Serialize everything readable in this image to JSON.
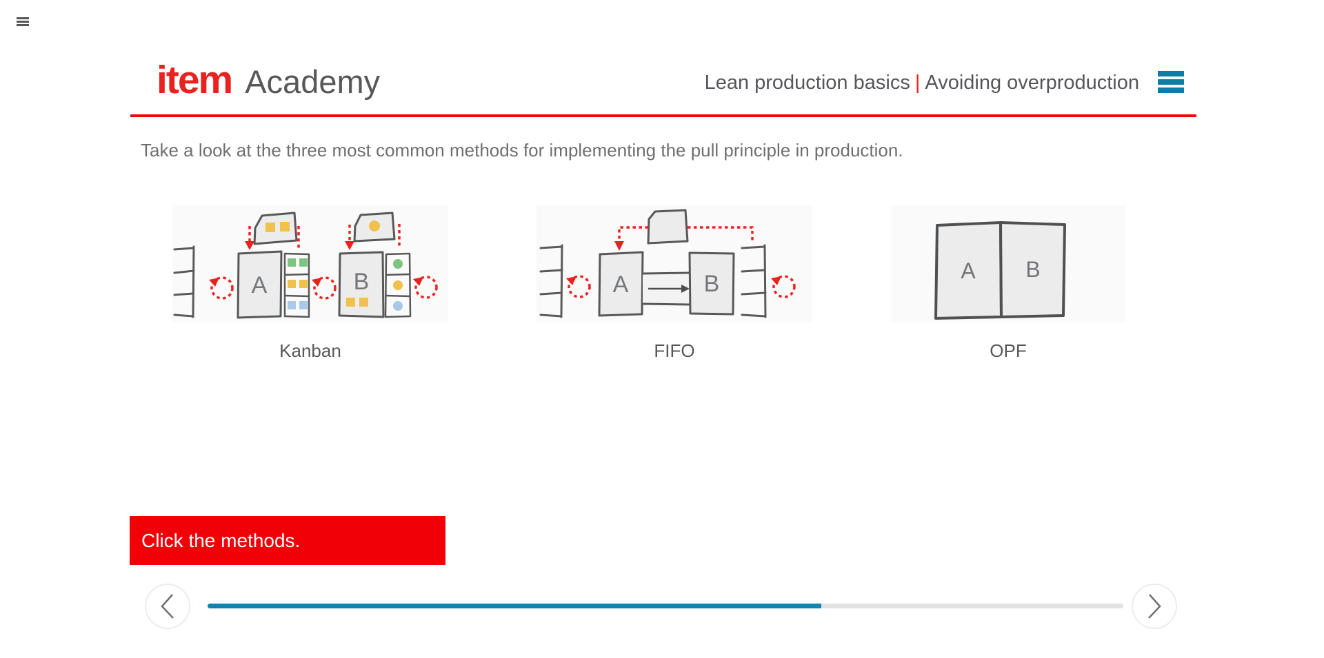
{
  "app": {
    "corner_menu_icon": "hamburger-menu"
  },
  "header": {
    "logo_brand": "item",
    "logo_suffix": "Academy",
    "course_title": "Lean production basics",
    "title_separator": "|",
    "lesson_title": "Avoiding overproduction",
    "menu_icon": "hamburger-menu"
  },
  "instruction": "Take a look at the three most common methods for implementing the pull principle in production.",
  "methods": [
    {
      "label": "Kanban",
      "stations": {
        "a": "A",
        "b": "B"
      }
    },
    {
      "label": "FIFO",
      "stations": {
        "a": "A",
        "b": "B"
      }
    },
    {
      "label": "OPF",
      "stations": {
        "a": "A",
        "b": "B"
      }
    }
  ],
  "prompt_banner": {
    "text": "Click the methods."
  },
  "navigation": {
    "progress_percent": 67,
    "prev_icon": "chevron-left",
    "next_icon": "chevron-right"
  },
  "colors": {
    "brand_red": "#e8231f",
    "rule_red": "#f10511",
    "banner_red": "#f20008",
    "teal_accent": "#0d7da4",
    "progress_fill": "#0f86ad",
    "progress_track": "#e2e2e2",
    "panel_bg": "#fafafa",
    "sketch_gray": "#58585a",
    "kanban_yellow": "#f0c24b",
    "kanban_green": "#7cc47f",
    "kanban_blue": "#a9c9ea"
  }
}
